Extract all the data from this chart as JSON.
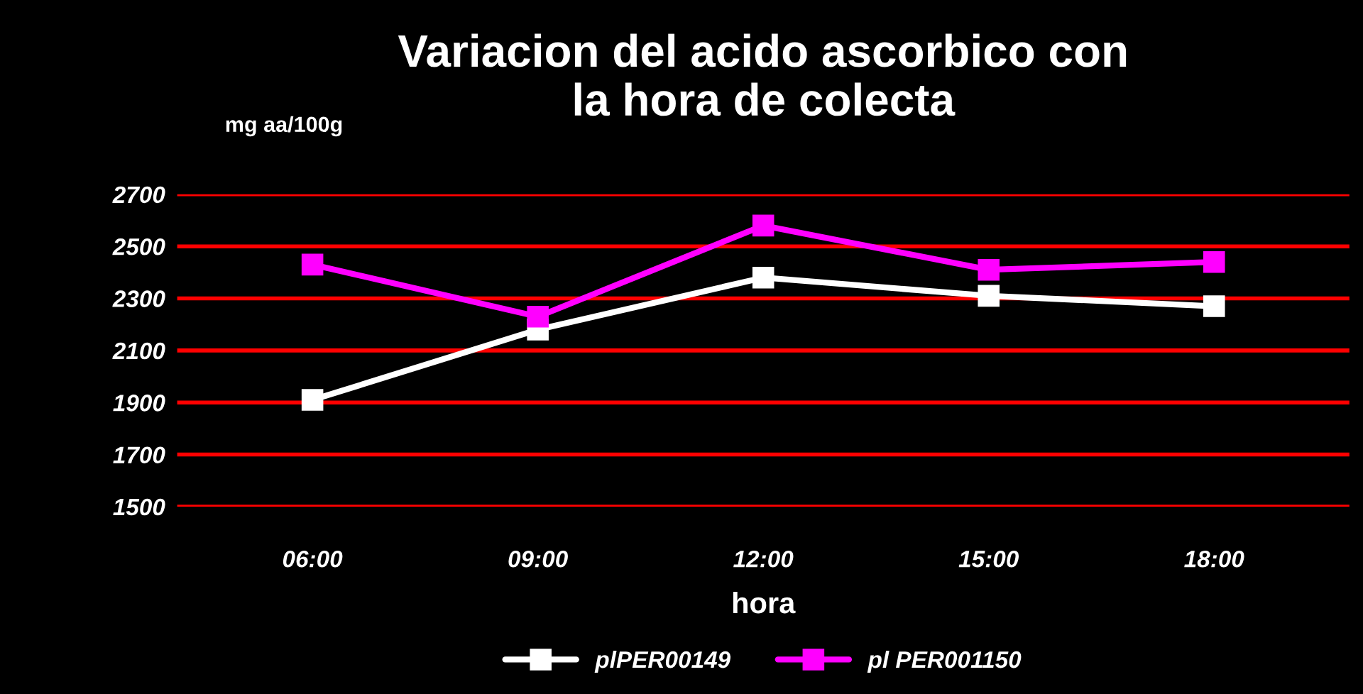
{
  "chart_data": {
    "type": "line",
    "title": "Variacion del acido ascorbico con\nla hora de colecta",
    "ylabel": "mg aa/100g",
    "xlabel": "hora",
    "categories": [
      "06:00",
      "09:00",
      "12:00",
      "15:00",
      "18:00"
    ],
    "series": [
      {
        "name": "plPER00149",
        "color": "#ffffff",
        "values": [
          1910,
          2180,
          2380,
          2310,
          2270
        ]
      },
      {
        "name": "pl PER001150",
        "color": "#ff00ff",
        "values": [
          2430,
          2230,
          2580,
          2410,
          2440
        ]
      }
    ],
    "ylim": [
      1500,
      2700
    ],
    "yticks": [
      1500,
      1700,
      1900,
      2100,
      2300,
      2500,
      2700
    ],
    "grid": "y",
    "legend": "bottom",
    "marker": "square",
    "line_style": "solid"
  }
}
